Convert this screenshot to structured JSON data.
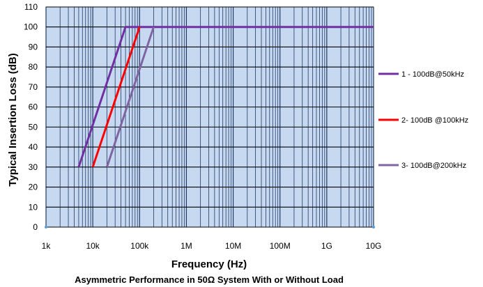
{
  "chart_data": {
    "type": "line",
    "title": "Asymmetric  Performance in 50Ω System With or Without Load",
    "xlabel": "Frequency (Hz)",
    "ylabel": "Typical Insertion Loss (dB)",
    "x_scale": "log",
    "xlim": [
      "1k",
      "10G"
    ],
    "ylim": [
      0,
      110
    ],
    "x_ticks": [
      "1k",
      "10k",
      "100k",
      "1M",
      "10M",
      "100M",
      "1G",
      "10G"
    ],
    "y_ticks": [
      "0",
      "10",
      "20",
      "30",
      "40",
      "50",
      "60",
      "70",
      "80",
      "90",
      "100",
      "110"
    ],
    "grid": true,
    "legend_position": "right",
    "plot_background": "#c6d9f1",
    "grid_color": "#1f3864",
    "series": [
      {
        "name": "1 - 100dB@50kHz",
        "color": "#7030a0",
        "x": [
          "5k",
          "50k",
          "10G"
        ],
        "y": [
          30,
          100,
          100
        ]
      },
      {
        "name": "2- 100dB @100kHz",
        "color": "#ff0000",
        "x": [
          "10k",
          "100k"
        ],
        "y": [
          30,
          100
        ]
      },
      {
        "name": "3- 100dB@200kHz",
        "color": "#8064a2",
        "x": [
          "20k",
          "200k"
        ],
        "y": [
          30,
          100
        ]
      }
    ]
  }
}
